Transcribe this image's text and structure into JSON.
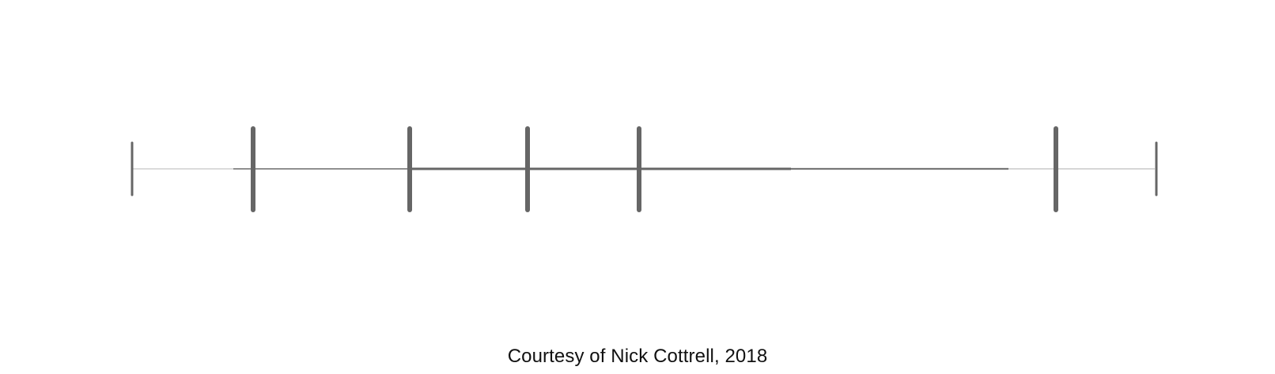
{
  "diagram": {
    "end_ticks": 2,
    "marker_ticks": 5,
    "colors": {
      "line_faint": "#c8c8c8",
      "line_medium": "#8a8a8a",
      "line_dark": "#666666",
      "tick": "#666666"
    }
  },
  "caption": "Courtesy of Nick Cottrell, 2018"
}
